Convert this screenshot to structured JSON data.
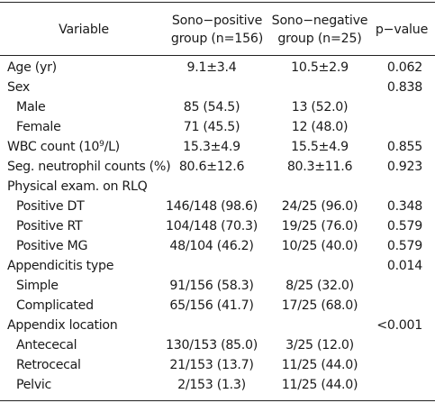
{
  "header": {
    "variable": "Variable",
    "sono_positive_line1": "Sono−positive",
    "sono_positive_line2": "group (n=156)",
    "sono_negative_line1": "Sono−negative",
    "sono_negative_line2": "group (n=25)",
    "p_value": "p−value"
  },
  "rows": [
    {
      "label": "Age (yr)",
      "pos": "9.1±3.4",
      "neg": "10.5±2.9",
      "p": "0.062"
    },
    {
      "label": "Sex",
      "pos": "",
      "neg": "",
      "p": "0.838"
    },
    {
      "label": "Male",
      "pos": "85 (54.5)",
      "neg": "13 (52.0)",
      "p": ""
    },
    {
      "label": "Female",
      "pos": "71 (45.5)",
      "neg": "12 (48.0)",
      "p": ""
    },
    {
      "label_pre": "WBC count (10",
      "label_sup": "9",
      "label_post": "/L)",
      "pos": "15.3±4.9",
      "neg": "15.5±4.9",
      "p": "0.855"
    },
    {
      "label": "Seg. neutrophil counts (%)",
      "pos": "80.6±12.6",
      "neg": "80.3±11.6",
      "p": "0.923"
    },
    {
      "label": "Physical exam. on RLQ",
      "pos": "",
      "neg": "",
      "p": ""
    },
    {
      "label": "Positive DT",
      "pos": "146/148 (98.6)",
      "neg": "24/25 (96.0)",
      "p": "0.348"
    },
    {
      "label": "Positive RT",
      "pos": "104/148 (70.3)",
      "neg": "19/25 (76.0)",
      "p": "0.579"
    },
    {
      "label": "Positive MG",
      "pos": "48/104 (46.2)",
      "neg": "10/25 (40.0)",
      "p": "0.579"
    },
    {
      "label": "Appendicitis type",
      "pos": "",
      "neg": "",
      "p": "0.014"
    },
    {
      "label": "Simple",
      "pos": "91/156 (58.3)",
      "neg": "8/25 (32.0)",
      "p": ""
    },
    {
      "label": "Complicated",
      "pos": "65/156 (41.7)",
      "neg": "17/25 (68.0)",
      "p": ""
    },
    {
      "label": "Appendix location",
      "pos": "",
      "neg": "",
      "p": "<0.001"
    },
    {
      "label": "Antececal",
      "pos": "130/153 (85.0)",
      "neg": "3/25 (12.0)",
      "p": ""
    },
    {
      "label": "Retrocecal",
      "pos": "21/153 (13.7)",
      "neg": "11/25 (44.0)",
      "p": ""
    },
    {
      "label": "Pelvic",
      "pos": "2/153 (1.3)",
      "neg": "11/25 (44.0)",
      "p": ""
    }
  ]
}
